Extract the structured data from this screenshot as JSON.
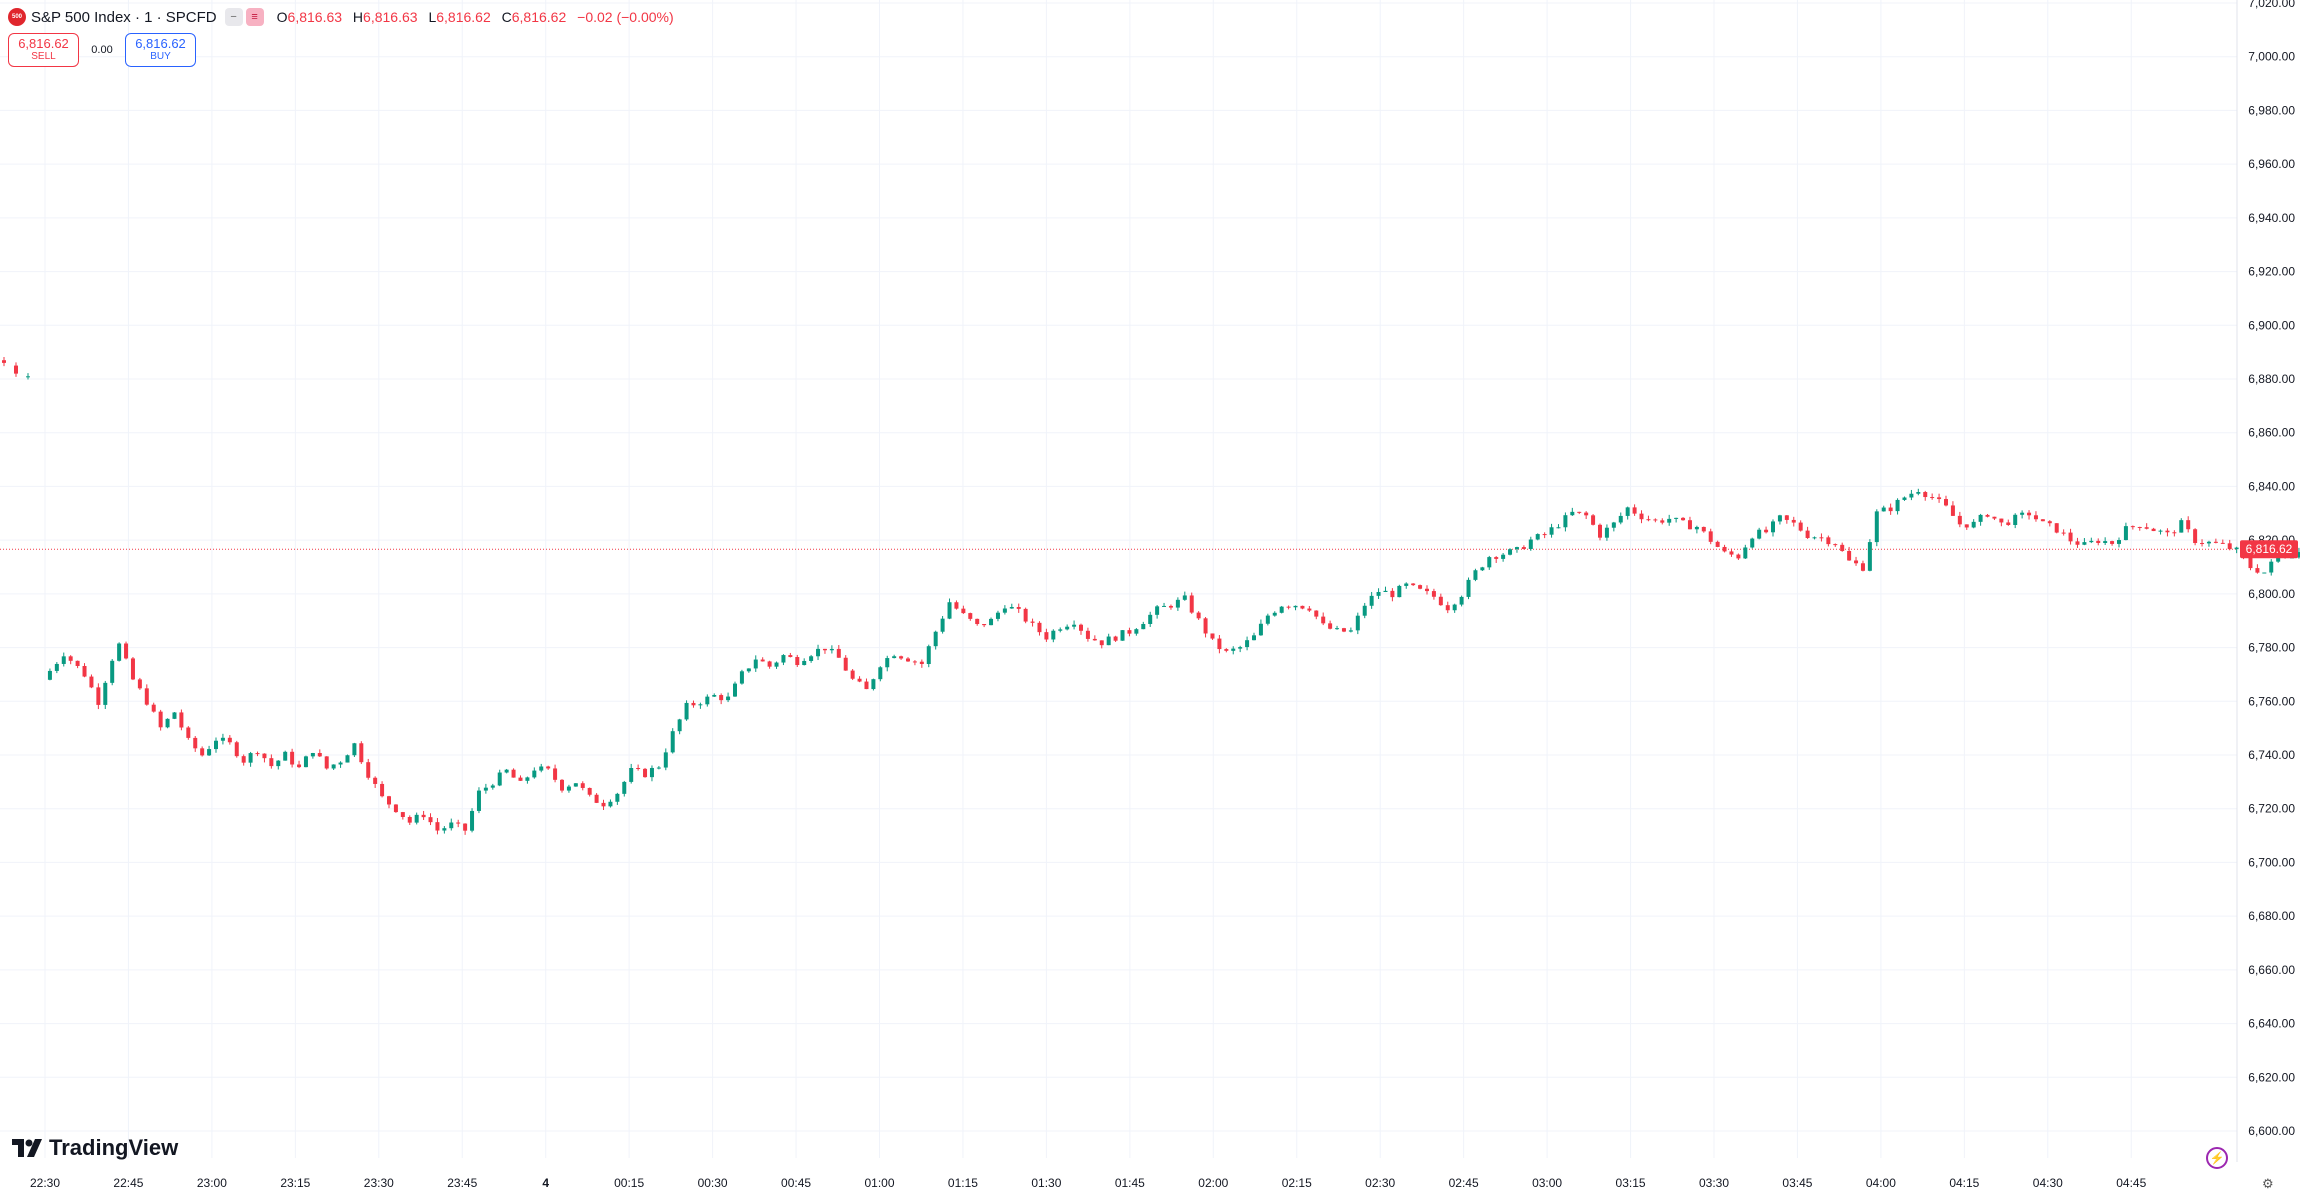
{
  "header": {
    "symbol_badge": "500",
    "title": "S&P 500 Index · 1 · SPCFD",
    "ohlc": [
      {
        "k": "O",
        "v": "6,816.63"
      },
      {
        "k": "H",
        "v": "6,816.63"
      },
      {
        "k": "L",
        "v": "6,816.62"
      },
      {
        "k": "C",
        "v": "6,816.62"
      }
    ],
    "change": "−0.02 (−0.00%)"
  },
  "trade": {
    "sell_price": "6,816.62",
    "sell_label": "SELL",
    "spread": "0.00",
    "buy_price": "6,816.62",
    "buy_label": "BUY"
  },
  "brand": "TradingView",
  "last_price_label": "6,816.62",
  "colors": {
    "up": "#089981",
    "down": "#f23645",
    "grid": "#f0f3fa",
    "price_line": "#f23645"
  },
  "icons": {
    "logo": "tradingview-logo-icon",
    "flash": "lightning-icon",
    "settings": "gear-icon"
  },
  "chart_data": {
    "type": "candlestick",
    "title": "S&P 500 Index · 1 · SPCFD",
    "interval": "1 minute",
    "ylim": [
      6600,
      7020
    ],
    "y_ticks": [
      6600,
      6620,
      6640,
      6660,
      6680,
      6700,
      6720,
      6740,
      6760,
      6780,
      6800,
      6820,
      6840,
      6860,
      6880,
      6900,
      6920,
      6940,
      6960,
      6980,
      7000,
      7020
    ],
    "y_tick_labels": [
      "6,600.00",
      "6,620.00",
      "6,640.00",
      "6,660.00",
      "6,680.00",
      "6,700.00",
      "6,720.00",
      "6,740.00",
      "6,760.00",
      "6,780.00",
      "6,800.00",
      "6,820.00",
      "6,840.00",
      "6,860.00",
      "6,880.00",
      "6,900.00",
      "6,920.00",
      "6,940.00",
      "6,960.00",
      "6,980.00",
      "7,000.00",
      "7,020.00"
    ],
    "x_tick_labels": [
      "22:30",
      "22:45",
      "23:00",
      "23:15",
      "23:30",
      "23:45",
      "4",
      "00:15",
      "00:30",
      "00:45",
      "01:00",
      "01:15",
      "01:30",
      "01:45",
      "02:00",
      "02:15",
      "02:30",
      "02:45",
      "03:00",
      "03:15",
      "03:30",
      "03:45",
      "04:00",
      "04:15",
      "04:30",
      "04:45"
    ],
    "last_price": 6816.62,
    "early_path": [
      [
        6887,
        6886
      ],
      [
        6885,
        6882
      ],
      [
        6881,
        6881
      ]
    ],
    "path": [
      [
        0,
        6768
      ],
      [
        3,
        6778
      ],
      [
        6,
        6770
      ],
      [
        8,
        6760
      ],
      [
        10,
        6776
      ],
      [
        11,
        6781
      ],
      [
        13,
        6768
      ],
      [
        15,
        6760
      ],
      [
        17,
        6750
      ],
      [
        19,
        6756
      ],
      [
        21,
        6745
      ],
      [
        23,
        6740
      ],
      [
        25,
        6746
      ],
      [
        27,
        6744
      ],
      [
        29,
        6738
      ],
      [
        31,
        6742
      ],
      [
        33,
        6736
      ],
      [
        35,
        6740
      ],
      [
        37,
        6735
      ],
      [
        39,
        6742
      ],
      [
        41,
        6735
      ],
      [
        43,
        6738
      ],
      [
        45,
        6744
      ],
      [
        47,
        6733
      ],
      [
        49,
        6724
      ],
      [
        51,
        6720
      ],
      [
        53,
        6715
      ],
      [
        55,
        6718
      ],
      [
        57,
        6712
      ],
      [
        59,
        6714
      ],
      [
        61,
        6712
      ],
      [
        63,
        6726
      ],
      [
        65,
        6730
      ],
      [
        67,
        6734
      ],
      [
        69,
        6729
      ],
      [
        71,
        6735
      ],
      [
        73,
        6734
      ],
      [
        75,
        6728
      ],
      [
        77,
        6730
      ],
      [
        79,
        6724
      ],
      [
        81,
        6722
      ],
      [
        83,
        6726
      ],
      [
        85,
        6734
      ],
      [
        87,
        6733
      ],
      [
        89,
        6736
      ],
      [
        91,
        6748
      ],
      [
        93,
        6758
      ],
      [
        95,
        6760
      ],
      [
        97,
        6762
      ],
      [
        99,
        6761
      ],
      [
        101,
        6770
      ],
      [
        103,
        6776
      ],
      [
        105,
        6773
      ],
      [
        107,
        6777
      ],
      [
        109,
        6775
      ],
      [
        111,
        6778
      ],
      [
        113,
        6780
      ],
      [
        115,
        6776
      ],
      [
        117,
        6768
      ],
      [
        119,
        6764
      ],
      [
        121,
        6774
      ],
      [
        123,
        6778
      ],
      [
        125,
        6776
      ],
      [
        127,
        6774
      ],
      [
        129,
        6786
      ],
      [
        131,
        6797
      ],
      [
        133,
        6792
      ],
      [
        135,
        6788
      ],
      [
        137,
        6790
      ],
      [
        139,
        6796
      ],
      [
        141,
        6793
      ],
      [
        143,
        6788
      ],
      [
        145,
        6784
      ],
      [
        147,
        6788
      ],
      [
        149,
        6790
      ],
      [
        151,
        6784
      ],
      [
        153,
        6782
      ],
      [
        155,
        6784
      ],
      [
        157,
        6786
      ],
      [
        159,
        6790
      ],
      [
        161,
        6794
      ],
      [
        163,
        6796
      ],
      [
        165,
        6798
      ],
      [
        167,
        6790
      ],
      [
        169,
        6782
      ],
      [
        171,
        6778
      ],
      [
        173,
        6780
      ],
      [
        175,
        6784
      ],
      [
        177,
        6792
      ],
      [
        179,
        6796
      ],
      [
        181,
        6796
      ],
      [
        183,
        6795
      ],
      [
        185,
        6788
      ],
      [
        187,
        6786
      ],
      [
        189,
        6786
      ],
      [
        191,
        6796
      ],
      [
        193,
        6801
      ],
      [
        195,
        6800
      ],
      [
        197,
        6803
      ],
      [
        199,
        6801
      ],
      [
        201,
        6799
      ],
      [
        203,
        6795
      ],
      [
        205,
        6800
      ],
      [
        207,
        6808
      ],
      [
        209,
        6814
      ],
      [
        211,
        6815
      ],
      [
        213,
        6816
      ],
      [
        215,
        6820
      ],
      [
        217,
        6822
      ],
      [
        219,
        6826
      ],
      [
        221,
        6830
      ],
      [
        223,
        6829
      ],
      [
        225,
        6822
      ],
      [
        227,
        6826
      ],
      [
        229,
        6832
      ],
      [
        231,
        6829
      ],
      [
        233,
        6827
      ],
      [
        235,
        6828
      ],
      [
        237,
        6826
      ],
      [
        239,
        6825
      ],
      [
        241,
        6820
      ],
      [
        243,
        6815
      ],
      [
        245,
        6814
      ],
      [
        247,
        6822
      ],
      [
        249,
        6823
      ],
      [
        251,
        6828
      ],
      [
        253,
        6826
      ],
      [
        255,
        6822
      ],
      [
        257,
        6821
      ],
      [
        259,
        6819
      ],
      [
        261,
        6812
      ],
      [
        263,
        6810
      ],
      [
        265,
        6830
      ],
      [
        267,
        6832
      ],
      [
        269,
        6836
      ],
      [
        271,
        6839
      ],
      [
        273,
        6836
      ],
      [
        275,
        6832
      ],
      [
        277,
        6826
      ],
      [
        279,
        6826
      ],
      [
        281,
        6830
      ],
      [
        283,
        6826
      ],
      [
        285,
        6828
      ],
      [
        287,
        6830
      ],
      [
        289,
        6826
      ],
      [
        291,
        6824
      ],
      [
        293,
        6820
      ],
      [
        295,
        6818
      ],
      [
        297,
        6820
      ],
      [
        299,
        6819
      ],
      [
        301,
        6824
      ],
      [
        303,
        6826
      ],
      [
        305,
        6824
      ],
      [
        307,
        6822
      ],
      [
        309,
        6826
      ],
      [
        311,
        6820
      ],
      [
        313,
        6819
      ],
      [
        315,
        6818
      ],
      [
        317,
        6816
      ],
      [
        319,
        6810
      ],
      [
        321,
        6808
      ],
      [
        323,
        6814
      ],
      [
        325,
        6815
      ],
      [
        327,
        6816
      ]
    ]
  }
}
